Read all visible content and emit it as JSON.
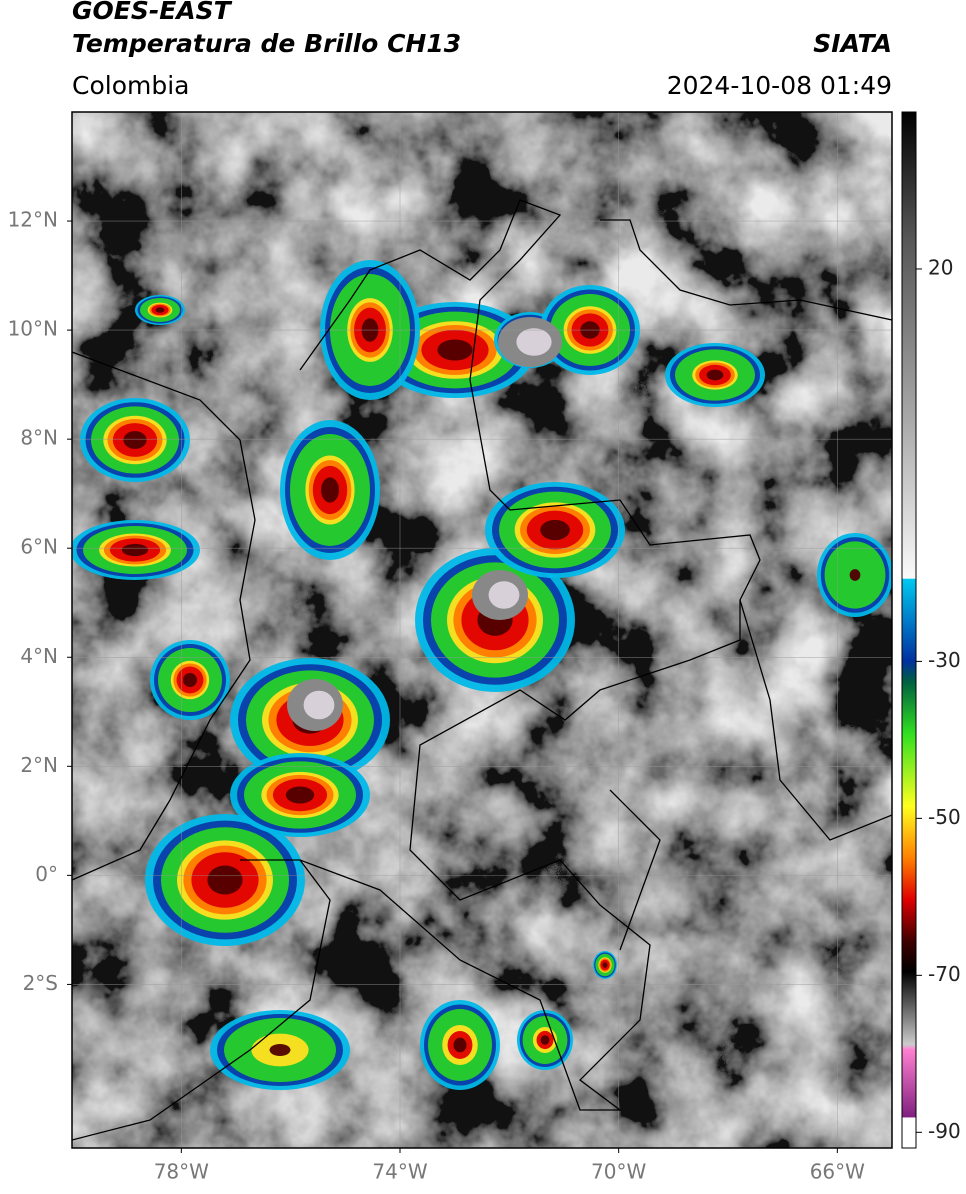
{
  "header": {
    "title": "GOES-EAST",
    "subtitle": "Temperatura de Brillo CH13",
    "region": "Colombia",
    "source": "SIATA",
    "datetime": "2024-10-08 01:49"
  },
  "map": {
    "xlim": [
      -80,
      -65
    ],
    "ylim": [
      -5,
      14
    ],
    "xticks": [
      {
        "value": -78,
        "label": "78°W"
      },
      {
        "value": -74,
        "label": "74°W"
      },
      {
        "value": -70,
        "label": "70°W"
      },
      {
        "value": -66,
        "label": "66°W"
      }
    ],
    "yticks": [
      {
        "value": 12,
        "label": "12°N"
      },
      {
        "value": 10,
        "label": "10°N"
      },
      {
        "value": 8,
        "label": "8°N"
      },
      {
        "value": 6,
        "label": "6°N"
      },
      {
        "value": 4,
        "label": "4°N"
      },
      {
        "value": 2,
        "label": "2°N"
      },
      {
        "value": 0,
        "label": "0°"
      },
      {
        "value": -2,
        "label": "2°S"
      }
    ],
    "grid": true
  },
  "colorbar": {
    "clim": [
      -92,
      40
    ],
    "ticks": [
      20,
      -30,
      -50,
      -70,
      -90
    ]
  }
}
